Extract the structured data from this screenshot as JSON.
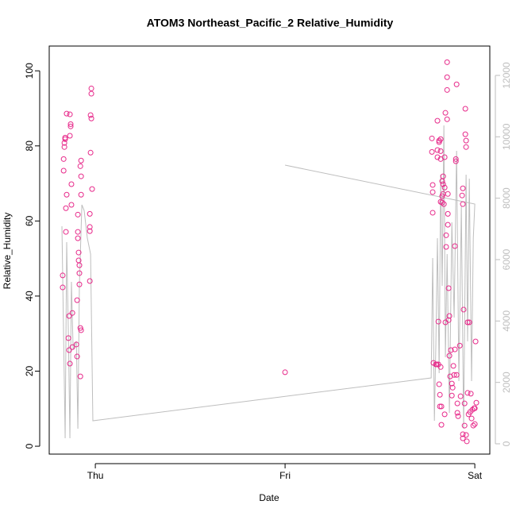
{
  "chart_data": {
    "type": "scatter",
    "title": "ATOM3 Northeast_Pacific_2 Relative_Humidity",
    "x_label": "Date",
    "y_label": "Relative_Humidity",
    "xlim": [
      -0.243,
      2.079
    ],
    "xticks": [
      {
        "value": 0,
        "label": "Thu"
      },
      {
        "value": 1,
        "label": "Fri"
      },
      {
        "value": 2,
        "label": "Sat"
      }
    ],
    "ylim": [
      -2.1,
      106.6
    ],
    "yticks": [
      0,
      20,
      40,
      60,
      80,
      100
    ],
    "y2lim": [
      -336,
      12956
    ],
    "y2ticks": [
      0,
      2000,
      4000,
      6000,
      8000,
      10000,
      12000
    ],
    "y2color": "#bebebe",
    "series": [
      {
        "mark": "point",
        "color": "#e7298a",
        "x": [
          -0.172,
          -0.172,
          -0.167,
          -0.167,
          -0.163,
          -0.163,
          -0.159,
          -0.159,
          -0.155,
          -0.155,
          -0.151,
          -0.151,
          -0.142,
          -0.138,
          -0.138,
          -0.134,
          -0.134,
          -0.134,
          -0.13,
          -0.13,
          -0.126,
          -0.126,
          -0.121,
          -0.121,
          -0.1,
          -0.096,
          -0.096,
          -0.092,
          -0.092,
          -0.092,
          -0.088,
          -0.088,
          -0.084,
          -0.084,
          -0.084,
          -0.079,
          -0.079,
          -0.075,
          -0.079,
          -0.075,
          -0.075,
          -0.075,
          -0.029,
          -0.029,
          -0.029,
          -0.029,
          -0.025,
          -0.025,
          -0.021,
          -0.021,
          -0.021,
          -0.017,
          1.0,
          1.774,
          1.774,
          1.778,
          1.778,
          1.778,
          1.782,
          1.795,
          1.799,
          1.803,
          1.803,
          1.803,
          1.808,
          1.808,
          1.812,
          1.812,
          1.812,
          1.816,
          1.816,
          1.82,
          1.82,
          1.82,
          1.82,
          1.82,
          1.824,
          1.824,
          1.828,
          1.828,
          1.828,
          1.833,
          1.833,
          1.833,
          1.837,
          1.841,
          1.841,
          1.841,
          1.845,
          1.845,
          1.849,
          1.849,
          1.854,
          1.854,
          1.854,
          1.854,
          1.858,
          1.858,
          1.858,
          1.862,
          1.862,
          1.866,
          1.866,
          1.87,
          1.874,
          1.879,
          1.879,
          1.883,
          1.887,
          1.891,
          1.895,
          1.895,
          1.9,
          1.9,
          1.904,
          1.904,
          1.908,
          1.908,
          1.912,
          1.921,
          1.925,
          1.933,
          1.937,
          1.937,
          1.937,
          1.937,
          1.941,
          1.946,
          1.946,
          1.95,
          1.95,
          1.954,
          1.954,
          1.954,
          1.958,
          1.962,
          1.962,
          1.967,
          1.971,
          1.975,
          1.979,
          1.983,
          1.987,
          1.992,
          1.996,
          2.0,
          2.0,
          2.004,
          2.008
        ],
        "values": [
          42.3,
          45.5,
          73.4,
          76.5,
          79.7,
          80.8,
          81.8,
          82.2,
          63.4,
          57.1,
          67.0,
          88.6,
          28.8,
          34.7,
          25.6,
          22.0,
          82.7,
          88.4,
          85.8,
          85.2,
          69.8,
          64.3,
          35.5,
          26.4,
          27.1,
          23.9,
          38.9,
          61.7,
          57.1,
          55.4,
          51.6,
          49.5,
          48.2,
          46.1,
          43.1,
          18.6,
          31.5,
          30.9,
          74.6,
          76.1,
          71.9,
          67.0,
          44.0,
          61.9,
          58.4,
          57.3,
          78.2,
          88.2,
          87.3,
          93.9,
          95.3,
          68.5,
          19.7,
          82.0,
          78.4,
          69.6,
          67.7,
          62.2,
          22.2,
          21.8,
          21.8,
          77.0,
          78.9,
          86.7,
          21.8,
          33.2,
          81.4,
          81.0,
          16.5,
          13.7,
          10.6,
          81.8,
          78.6,
          76.5,
          65.1,
          21.1,
          5.7,
          10.6,
          66.6,
          64.9,
          70.6,
          71.9,
          69.8,
          67.2,
          64.5,
          8.5,
          77.0,
          68.9,
          33.0,
          88.8,
          56.2,
          53.1,
          98.3,
          102.3,
          94.9,
          87.1,
          67.2,
          61.9,
          59.0,
          42.1,
          33.6,
          34.7,
          24.1,
          18.6,
          25.6,
          16.7,
          13.5,
          15.6,
          21.4,
          19.0,
          53.3,
          25.8,
          76.5,
          75.9,
          96.4,
          19.0,
          11.4,
          8.9,
          8.0,
          26.8,
          13.3,
          66.8,
          68.7,
          64.5,
          2.1,
          3.2,
          36.4,
          11.4,
          5.5,
          89.9,
          83.1,
          81.4,
          79.7,
          3.0,
          1.3,
          14.2,
          33.0,
          8.5,
          33.0,
          9.1,
          14.0,
          7.4,
          9.7,
          5.5,
          10.1,
          10.1,
          5.9,
          27.9,
          11.6
        ]
      },
      {
        "mark": "line",
        "axis": "y2",
        "color": "#bebebe",
        "x": [
          -0.176,
          -0.159,
          -0.151,
          -0.142,
          -0.134,
          -0.126,
          -0.117,
          -0.1,
          -0.092,
          -0.084,
          -0.071,
          -0.059,
          -0.042,
          -0.025,
          -0.013,
          1.77,
          1.778,
          1.787,
          1.795,
          1.803,
          1.812,
          1.82,
          1.828,
          1.837,
          1.845,
          1.854,
          1.866,
          1.879,
          1.891,
          1.904,
          1.916,
          1.929,
          1.941,
          1.954,
          1.962,
          1.971,
          1.983,
          1.992,
          2.0,
          1.0
        ],
        "values": [
          7086,
          181,
          6568,
          3595,
          181,
          5275,
          3077,
          3336,
          491,
          5146,
          7784,
          7603,
          6698,
          6180,
          750,
          2146,
          6051,
          750,
          3336,
          6698,
          2301,
          8767,
          5146,
          10370,
          2819,
          6180,
          1009,
          7215,
          4112,
          9542,
          2043,
          7732,
          491,
          8767,
          3336,
          8637,
          2043,
          6698,
          7810,
          9077
        ]
      }
    ]
  }
}
